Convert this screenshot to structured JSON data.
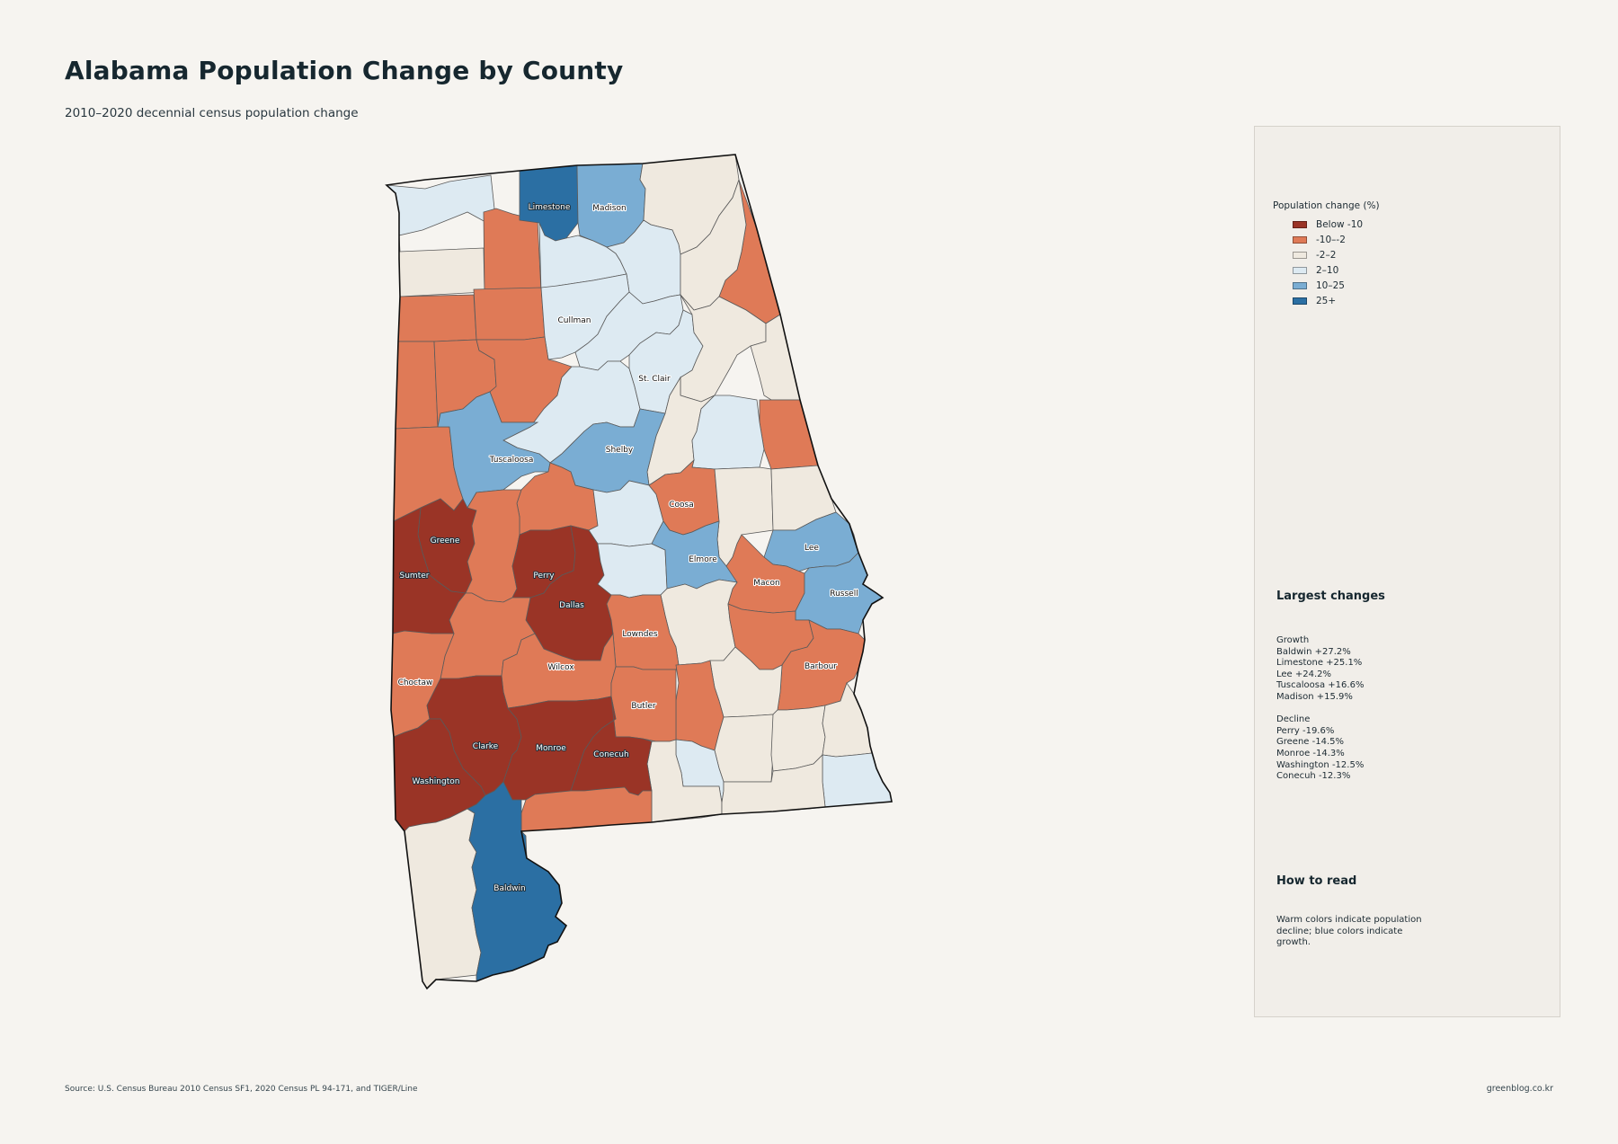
{
  "title": "Alabama Population Change by County",
  "subtitle": "2010–2020 decennial census population change",
  "legend": {
    "title": "Population change (%)",
    "items": [
      {
        "label": "Below -10",
        "color": "#9a3426"
      },
      {
        "label": "-10–-2",
        "color": "#df7a57"
      },
      {
        "label": "-2–2",
        "color": "#efe9df"
      },
      {
        "label": "2–10",
        "color": "#ddeaf2"
      },
      {
        "label": "10–25",
        "color": "#7aadd3"
      },
      {
        "label": "25+",
        "color": "#2b6fa3"
      }
    ]
  },
  "largest_changes": {
    "title": "Largest changes",
    "growth_title": "Growth",
    "growth": [
      "Baldwin  +27.2%",
      "Limestone  +25.1%",
      "Lee  +24.2%",
      "Tuscaloosa  +16.6%",
      "Madison  +15.9%"
    ],
    "decline_title": "Decline",
    "decline": [
      "Perry  -19.6%",
      "Greene  -14.5%",
      "Monroe  -14.3%",
      "Washington  -12.5%",
      "Conecuh  -12.3%"
    ]
  },
  "how_to_read": {
    "title": "How to read",
    "text": "Warm colors indicate population decline; blue colors indicate growth."
  },
  "source": "Source: U.S. Census Bureau 2010 Census SF1, 2020 Census PL 94-171, and TIGER/Line",
  "credit": "greenblog.co.kr",
  "map_labels": {
    "limestone": "Limestone",
    "madison": "Madison",
    "cullman": "Cullman",
    "st_clair": "St. Clair",
    "tuscaloosa": "Tuscaloosa",
    "shelby": "Shelby",
    "coosa": "Coosa",
    "greene": "Greene",
    "sumter": "Sumter",
    "perry": "Perry",
    "elmore": "Elmore",
    "lee": "Lee",
    "dallas": "Dallas",
    "macon": "Macon",
    "russell": "Russell",
    "lowndes": "Lowndes",
    "choctaw": "Choctaw",
    "wilcox": "Wilcox",
    "barbour": "Barbour",
    "butler": "Butler",
    "clarke": "Clarke",
    "monroe": "Monroe",
    "conecuh": "Conecuh",
    "washington": "Washington",
    "baldwin": "Baldwin"
  }
}
